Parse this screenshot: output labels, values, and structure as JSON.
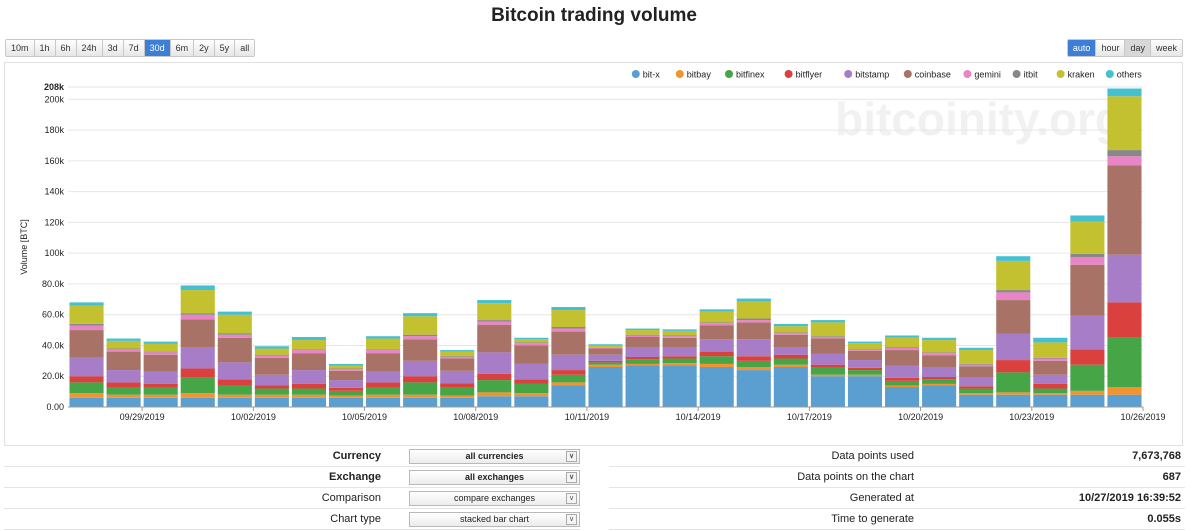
{
  "title": "Bitcoin trading volume",
  "ranges": [
    {
      "label": "10m",
      "active": false
    },
    {
      "label": "1h",
      "active": false
    },
    {
      "label": "6h",
      "active": false
    },
    {
      "label": "24h",
      "active": false
    },
    {
      "label": "3d",
      "active": false
    },
    {
      "label": "7d",
      "active": false
    },
    {
      "label": "30d",
      "active": true
    },
    {
      "label": "6m",
      "active": false
    },
    {
      "label": "2y",
      "active": false
    },
    {
      "label": "5y",
      "active": false
    },
    {
      "label": "all",
      "active": false
    }
  ],
  "resolutions": [
    {
      "label": "auto",
      "state": "active"
    },
    {
      "label": "hour",
      "state": ""
    },
    {
      "label": "day",
      "state": "grey"
    },
    {
      "label": "week",
      "state": ""
    }
  ],
  "watermark": "bitcoinity.org",
  "chart_data": {
    "type": "bar",
    "stacked": true,
    "ylabel": "Volume [BTC]",
    "ylim": [
      0,
      208000
    ],
    "y_top_label": "208k",
    "y_ticks": [
      {
        "value": 0,
        "label": "0.00"
      },
      {
        "value": 20000,
        "label": "20.0k"
      },
      {
        "value": 40000,
        "label": "40.0k"
      },
      {
        "value": 60000,
        "label": "60.0k"
      },
      {
        "value": 80000,
        "label": "80.0k"
      },
      {
        "value": 100000,
        "label": "100k"
      },
      {
        "value": 120000,
        "label": "120k"
      },
      {
        "value": 140000,
        "label": "140k"
      },
      {
        "value": 160000,
        "label": "160k"
      },
      {
        "value": 180000,
        "label": "180k"
      },
      {
        "value": 200000,
        "label": "200k"
      }
    ],
    "categories": [
      "09/28/2019",
      "09/29/2019",
      "09/30/2019",
      "10/01/2019",
      "10/02/2019",
      "10/03/2019",
      "10/04/2019",
      "10/05/2019",
      "10/06/2019",
      "10/07/2019",
      "10/08/2019",
      "10/09/2019",
      "10/10/2019",
      "10/11/2019",
      "10/12/2019",
      "10/13/2019",
      "10/14/2019",
      "10/15/2019",
      "10/16/2019",
      "10/17/2019",
      "10/18/2019",
      "10/19/2019",
      "10/20/2019",
      "10/21/2019",
      "10/22/2019",
      "10/23/2019",
      "10/24/2019",
      "10/25/2019",
      "10/26/2019"
    ],
    "x_tick_labels": [
      {
        "index": 2,
        "label": "09/29/2019"
      },
      {
        "index": 5,
        "label": "10/02/2019"
      },
      {
        "index": 8,
        "label": "10/05/2019"
      },
      {
        "index": 11,
        "label": "10/08/2019"
      },
      {
        "index": 14,
        "label": "10/11/2019"
      },
      {
        "index": 17,
        "label": "10/14/2019"
      },
      {
        "index": 20,
        "label": "10/17/2019"
      },
      {
        "index": 23,
        "label": "10/20/2019"
      },
      {
        "index": 26,
        "label": "10/23/2019"
      },
      {
        "index": 29,
        "label": "10/26/2019"
      }
    ],
    "legend_position": "top-right",
    "series": [
      {
        "name": "bit-x",
        "color": "#5b9fd1",
        "values": [
          6000,
          6000,
          6000,
          6000,
          6000,
          6000,
          6000,
          6000,
          6000,
          6000,
          6000,
          7000,
          7000,
          14000,
          26000,
          27000,
          27000,
          26000,
          24000,
          26000,
          20000,
          20000,
          13000,
          14000,
          8000,
          8000,
          8000,
          8000,
          8000
        ]
      },
      {
        "name": "bitbay",
        "color": "#f39330",
        "values": [
          3000,
          2000,
          2000,
          3000,
          2000,
          2000,
          2000,
          1500,
          2000,
          2000,
          1500,
          2500,
          2000,
          2000,
          1500,
          1000,
          1500,
          2000,
          2000,
          1500,
          1000,
          1000,
          1000,
          1000,
          1000,
          1500,
          1000,
          2500,
          5000
        ]
      },
      {
        "name": "bitfinex",
        "color": "#46a546",
        "values": [
          7000,
          5000,
          5000,
          10000,
          6000,
          4000,
          4000,
          3000,
          5000,
          8000,
          5000,
          8000,
          6000,
          5000,
          1500,
          3000,
          3000,
          5000,
          4000,
          4000,
          5000,
          3000,
          3000,
          3000,
          3000,
          13000,
          3000,
          17000,
          32000
        ]
      },
      {
        "name": "bitflyer",
        "color": "#d9403e",
        "values": [
          4000,
          3000,
          2000,
          6000,
          4000,
          2000,
          3000,
          2000,
          3000,
          4000,
          3000,
          4000,
          3000,
          3000,
          1000,
          1500,
          1500,
          3000,
          3000,
          2500,
          1500,
          1500,
          2000,
          1500,
          1500,
          8000,
          3000,
          10000,
          23000
        ]
      },
      {
        "name": "bitstamp",
        "color": "#a77dc8",
        "values": [
          12000,
          8000,
          8000,
          14000,
          11000,
          7000,
          9000,
          5000,
          7000,
          10000,
          8000,
          14000,
          10000,
          10000,
          4000,
          6000,
          6000,
          8000,
          11000,
          5000,
          7000,
          5000,
          8000,
          6000,
          6000,
          17000,
          6000,
          22000,
          31000
        ]
      },
      {
        "name": "coinbase",
        "color": "#a87366",
        "values": [
          18000,
          12000,
          11000,
          18000,
          16000,
          11000,
          11000,
          6000,
          12000,
          14000,
          8000,
          18000,
          12000,
          15000,
          4000,
          7000,
          6000,
          9000,
          11000,
          8000,
          10000,
          6000,
          10000,
          8000,
          7000,
          22000,
          9000,
          33000,
          58000
        ]
      },
      {
        "name": "gemini",
        "color": "#e985c6",
        "values": [
          3000,
          1500,
          1500,
          3000,
          2000,
          1500,
          2000,
          1000,
          2000,
          2000,
          1000,
          2000,
          1500,
          2000,
          500,
          1000,
          1000,
          1500,
          1500,
          1000,
          1000,
          500,
          1500,
          1500,
          1000,
          5000,
          1500,
          5000,
          6000
        ]
      },
      {
        "name": "itbit",
        "color": "#888888",
        "values": [
          1000,
          500,
          500,
          1000,
          1000,
          500,
          500,
          500,
          500,
          1000,
          500,
          1000,
          500,
          1000,
          300,
          500,
          500,
          500,
          1000,
          500,
          500,
          500,
          500,
          500,
          500,
          1500,
          500,
          2000,
          4000
        ]
      },
      {
        "name": "kraken",
        "color": "#c4c130",
        "values": [
          12000,
          5000,
          5000,
          15000,
          12000,
          4000,
          6000,
          2000,
          7000,
          12000,
          3000,
          11000,
          2000,
          11000,
          1000,
          3000,
          3000,
          7000,
          11000,
          4000,
          9000,
          4000,
          6000,
          8000,
          9000,
          19000,
          10000,
          21000,
          35000
        ]
      },
      {
        "name": "others",
        "color": "#44c0d3",
        "values": [
          2000,
          1500,
          1500,
          3000,
          2000,
          1500,
          2000,
          1000,
          1500,
          2000,
          1000,
          2000,
          1000,
          2000,
          1000,
          1000,
          1000,
          1500,
          2000,
          1500,
          1500,
          1000,
          1500,
          1500,
          1500,
          3000,
          3000,
          4000,
          5000
        ]
      }
    ]
  },
  "settings": [
    {
      "label": "Currency",
      "value": "all currencies",
      "bold": true
    },
    {
      "label": "Exchange",
      "value": "all exchanges",
      "bold": true
    },
    {
      "label": "Comparison",
      "value": "compare exchanges",
      "bold": false
    },
    {
      "label": "Chart type",
      "value": "stacked bar chart",
      "bold": false
    }
  ],
  "stats": [
    {
      "label": "Data points used",
      "value": "7,673,768"
    },
    {
      "label": "Data points on the chart",
      "value": "687"
    },
    {
      "label": "Generated at",
      "value": "10/27/2019 16:39:52"
    },
    {
      "label": "Time to generate",
      "value": "0.055s"
    }
  ]
}
